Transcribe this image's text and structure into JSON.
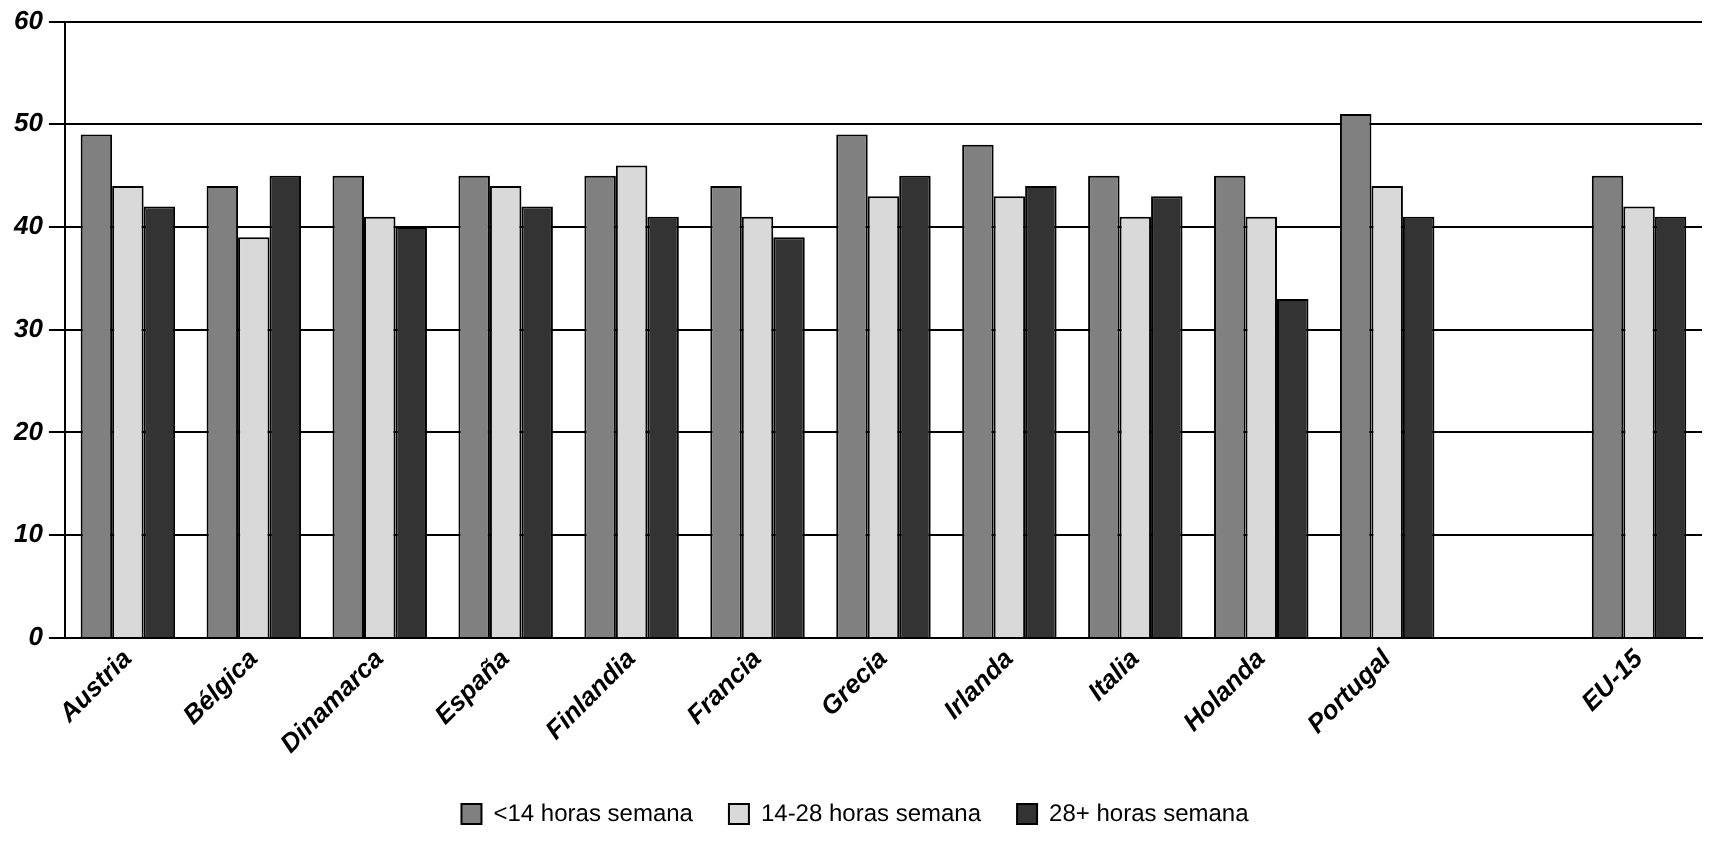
{
  "chart_data": {
    "type": "bar",
    "categories": [
      "Austria",
      "Bélgica",
      "Dinamarca",
      "España",
      "Finlandia",
      "Francia",
      "Grecia",
      "Irlanda",
      "Italia",
      "Holanda",
      "Portugal",
      null,
      "EU-15"
    ],
    "series": [
      {
        "name": "<14 horas semana",
        "color": "#808080",
        "values": [
          49,
          44,
          45,
          45,
          45,
          44,
          49,
          48,
          45,
          45,
          51,
          null,
          45
        ]
      },
      {
        "name": "14-28 horas semana",
        "color": "#d9d9d9",
        "values": [
          44,
          39,
          41,
          44,
          46,
          41,
          43,
          43,
          41,
          41,
          44,
          null,
          42
        ]
      },
      {
        "name": "28+ horas semana",
        "color": "#333333",
        "values": [
          42,
          45,
          40,
          42,
          41,
          39,
          45,
          44,
          43,
          33,
          41,
          null,
          41
        ]
      }
    ],
    "ylim": [
      0,
      60
    ],
    "yticks": [
      0,
      10,
      20,
      30,
      40,
      50,
      60
    ],
    "grid": "y",
    "legend": "bottom"
  }
}
